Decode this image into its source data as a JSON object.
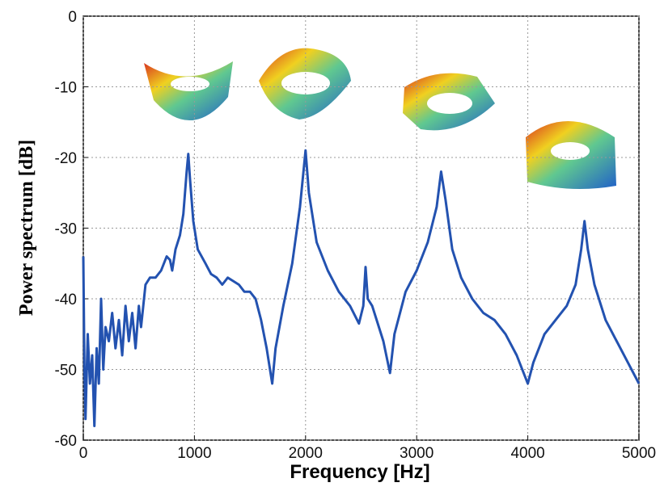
{
  "chart_data": {
    "type": "line",
    "x_label": "Frequency [Hz]",
    "y_label": "Power spectrum [dB]",
    "xlim": [
      0,
      5000
    ],
    "xticks": [
      0,
      1000,
      2000,
      3000,
      4000,
      5000
    ],
    "ylim": [
      -60,
      0
    ],
    "yticks": [
      -60,
      -50,
      -40,
      -30,
      -20,
      -10,
      0
    ],
    "grid": true,
    "series": [
      {
        "color": "#2352b0",
        "x": [
          0,
          10,
          20,
          40,
          60,
          80,
          100,
          120,
          140,
          160,
          180,
          200,
          230,
          260,
          290,
          320,
          350,
          380,
          410,
          440,
          470,
          500,
          520,
          560,
          600,
          650,
          700,
          750,
          780,
          800,
          830,
          870,
          900,
          930,
          945,
          960,
          990,
          1030,
          1100,
          1150,
          1200,
          1250,
          1300,
          1350,
          1400,
          1450,
          1500,
          1550,
          1600,
          1650,
          1700,
          1730,
          1800,
          1880,
          1950,
          2000,
          2030,
          2100,
          2200,
          2300,
          2400,
          2480,
          2520,
          2540,
          2560,
          2600,
          2700,
          2760,
          2800,
          2900,
          3000,
          3100,
          3180,
          3220,
          3260,
          3320,
          3400,
          3500,
          3600,
          3700,
          3800,
          3900,
          4000,
          4050,
          4150,
          4250,
          4350,
          4430,
          4480,
          4510,
          4540,
          4600,
          4700,
          4800,
          4900,
          5000
        ],
        "values": [
          -34,
          -50,
          -57,
          -45,
          -52,
          -48,
          -58,
          -47,
          -52,
          -40,
          -50,
          -44,
          -46,
          -42,
          -47,
          -43,
          -48,
          -41,
          -46,
          -42,
          -47,
          -41,
          -44,
          -38,
          -37,
          -37,
          -36,
          -34,
          -34.5,
          -36,
          -33,
          -31,
          -28,
          -22,
          -19.5,
          -23,
          -29,
          -33,
          -35,
          -36.5,
          -37,
          -38,
          -37,
          -37.5,
          -38,
          -39,
          -39,
          -40,
          -43,
          -47,
          -52,
          -47,
          -41,
          -35,
          -27,
          -19,
          -25,
          -32,
          -36,
          -39,
          -41,
          -43.5,
          -41,
          -35.5,
          -40,
          -41,
          -46,
          -50.5,
          -45,
          -39,
          -36,
          -32,
          -27,
          -22,
          -26,
          -33,
          -37,
          -40,
          -42,
          -43,
          -45,
          -48,
          -52,
          -49,
          -45,
          -43,
          -41,
          -38,
          -33,
          -29,
          -33,
          -38,
          -43,
          -46,
          -49,
          -52
        ]
      }
    ]
  }
}
